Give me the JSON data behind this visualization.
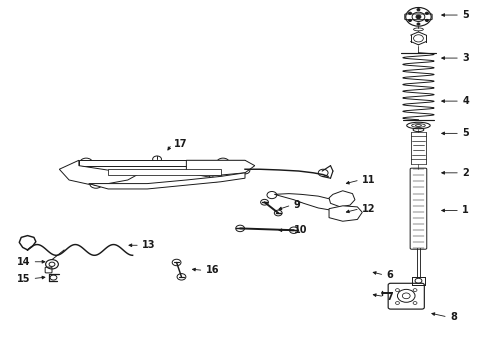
{
  "bg_color": "#ffffff",
  "fig_width": 4.9,
  "fig_height": 3.6,
  "dpi": 100,
  "lc": "#1a1a1a",
  "lw": 0.7,
  "label_fontsize": 7,
  "labels": {
    "1": [
      0.945,
      0.415,
      0.895,
      0.415,
      "left"
    ],
    "2": [
      0.945,
      0.52,
      0.895,
      0.52,
      "left"
    ],
    "3": [
      0.945,
      0.84,
      0.895,
      0.84,
      "left"
    ],
    "4": [
      0.945,
      0.72,
      0.895,
      0.72,
      "left"
    ],
    "5a": [
      0.945,
      0.96,
      0.895,
      0.96,
      "left"
    ],
    "5b": [
      0.945,
      0.63,
      0.895,
      0.63,
      "left"
    ],
    "6": [
      0.79,
      0.235,
      0.755,
      0.245,
      "left"
    ],
    "7": [
      0.79,
      0.175,
      0.755,
      0.182,
      "left"
    ],
    "8": [
      0.92,
      0.118,
      0.875,
      0.13,
      "left"
    ],
    "9": [
      0.6,
      0.43,
      0.562,
      0.415,
      "left"
    ],
    "10": [
      0.6,
      0.36,
      0.562,
      0.36,
      "left"
    ],
    "11": [
      0.74,
      0.5,
      0.7,
      0.488,
      "left"
    ],
    "12": [
      0.74,
      0.42,
      0.7,
      0.408,
      "left"
    ],
    "13": [
      0.29,
      0.318,
      0.255,
      0.318,
      "left"
    ],
    "14": [
      0.06,
      0.272,
      0.098,
      0.272,
      "right"
    ],
    "15": [
      0.06,
      0.225,
      0.098,
      0.23,
      "right"
    ],
    "16": [
      0.42,
      0.248,
      0.385,
      0.252,
      "left"
    ],
    "17": [
      0.355,
      0.6,
      0.338,
      0.575,
      "left"
    ]
  }
}
